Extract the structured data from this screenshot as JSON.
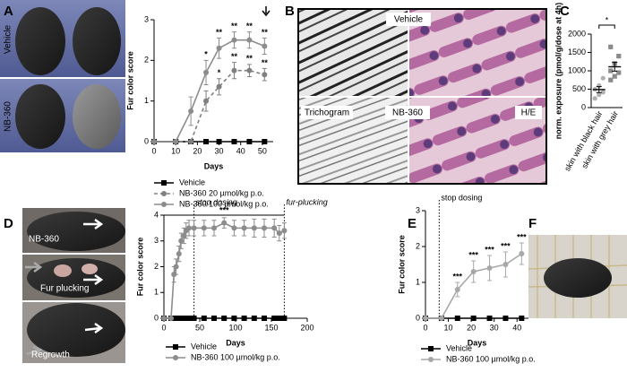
{
  "panel_labels": [
    "A",
    "B",
    "C",
    "D",
    "E",
    "F"
  ],
  "photo_labels": {
    "a_vehicle": "Vehicle",
    "a_nb360": "NB-360",
    "b_vehicle": "Vehicle",
    "b_trichogram": "Trichogram",
    "b_nb360": "NB-360",
    "b_he": "H/E",
    "d_nb360": "NB-360",
    "d_plucking": "Fur plucking",
    "d_regrowth": "Regrowth"
  },
  "chart_data": [
    {
      "type": "line",
      "ylabel": "Fur color score",
      "xlabel": "Days",
      "xlim": [
        0,
        55
      ],
      "xticks": [
        0,
        10,
        20,
        30,
        40,
        50
      ],
      "ylim": [
        0,
        3
      ],
      "yticks": [
        0,
        1,
        2,
        3
      ],
      "x": [
        0,
        10,
        17,
        24,
        30,
        37,
        44,
        51
      ],
      "series": [
        {
          "name": "Vehicle",
          "color": "#000000",
          "marker": "square",
          "values": [
            0,
            0,
            0,
            0,
            0,
            0,
            0,
            0
          ]
        },
        {
          "name": "NB-360 20 µmol/kg p.o.",
          "color": "#808080",
          "marker": "circle",
          "dash": true,
          "values": [
            0,
            0,
            0,
            1.0,
            1.35,
            1.75,
            1.75,
            1.65
          ],
          "errors": [
            0,
            0,
            0,
            0.25,
            0.2,
            0.2,
            0.15,
            0.15
          ],
          "annotations": [
            null,
            null,
            null,
            null,
            "*",
            "**",
            "**",
            "**"
          ]
        },
        {
          "name": "NB-360 100 µmol/kg p.o.",
          "color": "#8c8c8c",
          "marker": "circle",
          "values": [
            0,
            0,
            0.75,
            1.7,
            2.3,
            2.5,
            2.5,
            2.35
          ],
          "errors": [
            0,
            0,
            0.35,
            0.3,
            0.25,
            0.2,
            0.2,
            0.2
          ],
          "annotations": [
            null,
            null,
            null,
            "*",
            "**",
            "**",
            "**",
            "**"
          ]
        }
      ]
    },
    {
      "type": "dot",
      "ylabel": "norm. exposure (pmol/g/dose at 4h)",
      "ylim": [
        0,
        2000
      ],
      "yticks": [
        0,
        500,
        1000,
        1500,
        2000
      ],
      "categories": [
        "skin with black hair",
        "skin with grey hair"
      ],
      "groups": [
        {
          "color": "#b0b0b0",
          "marker": "circle",
          "values": [
            250,
            350,
            420,
            500,
            600,
            800
          ],
          "mean": 490,
          "sem": 80
        },
        {
          "color": "#8a8a8a",
          "marker": "square",
          "values": [
            750,
            850,
            950,
            1000,
            1200,
            1400,
            1650
          ],
          "mean": 1110,
          "sem": 120
        }
      ],
      "significance": "*"
    },
    {
      "type": "line",
      "ylabel": "Fur color score",
      "xlabel": "Days",
      "xlim": [
        0,
        200
      ],
      "xticks": [
        0,
        50,
        100,
        150,
        200
      ],
      "ylim": [
        0,
        4
      ],
      "yticks": [
        0,
        1,
        2,
        3,
        4
      ],
      "x": [
        0,
        10,
        14,
        17,
        21,
        24,
        28,
        31,
        35,
        42,
        56,
        70,
        84,
        98,
        112,
        126,
        140,
        154,
        161,
        168
      ],
      "series": [
        {
          "name": "Vehicle",
          "color": "#000000",
          "marker": "square",
          "values": [
            0,
            0,
            0,
            0,
            0,
            0,
            0,
            0,
            0,
            0,
            0,
            0,
            0,
            0,
            0,
            0,
            0,
            0,
            0,
            0
          ]
        },
        {
          "name": "NB-360 100 µmol/kg p.o.",
          "color": "#8c8c8c",
          "marker": "circle",
          "values": [
            0,
            0,
            1.7,
            2.0,
            2.5,
            3.0,
            3.2,
            3.4,
            3.5,
            3.5,
            3.5,
            3.5,
            3.7,
            3.5,
            3.5,
            3.5,
            3.5,
            3.5,
            3.3,
            3.4
          ],
          "errors": [
            0,
            0,
            0.3,
            0.3,
            0.3,
            0.3,
            0.3,
            0.3,
            0.3,
            0.3,
            0.3,
            0.3,
            0.2,
            0.3,
            0.3,
            0.35,
            0.35,
            0.35,
            0.3,
            0.3
          ]
        }
      ],
      "vlines": [
        {
          "x": 42,
          "label": "stop dosing"
        },
        {
          "x": 168,
          "label": "fur-plucking"
        }
      ],
      "vline_label_style": "italic",
      "bracket": {
        "from": 0,
        "to": 168,
        "level": 4,
        "label": "***"
      }
    },
    {
      "type": "line",
      "ylabel": "Fur color score",
      "xlabel": "Days",
      "xlim": [
        0,
        45
      ],
      "xticks": [
        0,
        10,
        20,
        30,
        40
      ],
      "ylim": [
        0,
        3
      ],
      "yticks": [
        0,
        1,
        2,
        3
      ],
      "x": [
        0,
        7,
        14,
        21,
        28,
        35,
        42
      ],
      "series": [
        {
          "name": "Vehicle",
          "color": "#000000",
          "marker": "square",
          "values": [
            0,
            0,
            0,
            0,
            0,
            0,
            0
          ]
        },
        {
          "name": "NB-360 100 µmol/kg p.o.",
          "color": "#a8a8a8",
          "marker": "circle",
          "values": [
            0,
            0,
            0.8,
            1.3,
            1.4,
            1.5,
            1.8
          ],
          "errors": [
            0,
            0,
            0.2,
            0.3,
            0.35,
            0.35,
            0.3
          ],
          "annotations": [
            null,
            null,
            "***",
            "***",
            "***",
            "***",
            "***"
          ]
        }
      ],
      "vlines": [
        {
          "x": 6,
          "label": "stop dosing"
        }
      ],
      "vline_label_style": "normal"
    }
  ]
}
